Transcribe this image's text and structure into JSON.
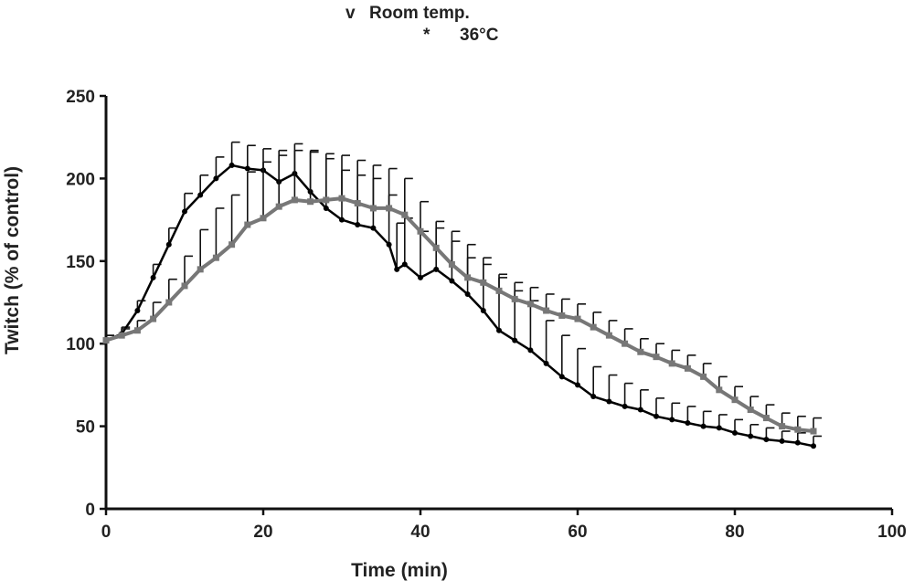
{
  "chart_data": {
    "type": "line",
    "title": "",
    "xlabel": "Time (min)",
    "ylabel": "Twitch (% of control)",
    "xlim": [
      0,
      100
    ],
    "ylim": [
      0,
      250
    ],
    "xticks": [
      "0",
      "20",
      "40",
      "60",
      "80",
      "100"
    ],
    "yticks": [
      "0",
      "50",
      "100",
      "150",
      "200",
      "250"
    ],
    "grid": false,
    "legend_position": "top-center",
    "series": [
      {
        "name": "Room temp.",
        "marker_label": "v",
        "color": "#000000",
        "x": [
          0,
          2,
          4,
          6,
          8,
          10,
          12,
          14,
          16,
          18,
          20,
          22,
          24,
          26,
          28,
          30,
          32,
          34,
          36,
          37,
          38,
          40,
          42,
          44,
          46,
          48,
          50,
          52,
          54,
          56,
          58,
          60,
          62,
          64,
          66,
          68,
          70,
          72,
          74,
          76,
          78,
          80,
          82,
          84,
          86,
          88,
          90
        ],
        "y": [
          102,
          106,
          120,
          140,
          160,
          180,
          190,
          200,
          208,
          206,
          205,
          198,
          203,
          192,
          182,
          175,
          172,
          170,
          160,
          145,
          148,
          140,
          145,
          138,
          130,
          120,
          108,
          102,
          96,
          88,
          80,
          75,
          68,
          65,
          62,
          60,
          56,
          54,
          52,
          50,
          49,
          46,
          44,
          42,
          41,
          40,
          38
        ],
        "err": [
          3,
          4,
          6,
          8,
          10,
          11,
          12,
          13,
          14,
          14,
          13,
          16,
          18,
          25,
          30,
          30,
          30,
          30,
          30,
          28,
          28,
          28,
          25,
          30,
          30,
          32,
          32,
          30,
          30,
          26,
          25,
          22,
          18,
          16,
          14,
          12,
          11,
          10,
          10,
          9,
          8,
          8,
          7,
          7,
          6,
          6,
          6
        ]
      },
      {
        "name": "36°C",
        "marker_label": "*",
        "color": "#777777",
        "x": [
          0,
          2,
          4,
          6,
          8,
          10,
          12,
          14,
          16,
          18,
          20,
          22,
          24,
          26,
          28,
          30,
          32,
          34,
          36,
          38,
          40,
          42,
          44,
          46,
          48,
          50,
          52,
          54,
          56,
          58,
          60,
          62,
          64,
          66,
          68,
          70,
          72,
          74,
          76,
          78,
          80,
          82,
          84,
          86,
          88,
          90
        ],
        "y": [
          102,
          105,
          108,
          115,
          125,
          135,
          145,
          152,
          160,
          172,
          176,
          183,
          187,
          186,
          187,
          188,
          185,
          182,
          182,
          178,
          168,
          158,
          148,
          140,
          137,
          132,
          127,
          124,
          120,
          117,
          115,
          110,
          105,
          100,
          95,
          92,
          88,
          85,
          80,
          72,
          66,
          60,
          55,
          50,
          48,
          47
        ],
        "err": [
          3,
          4,
          6,
          10,
          14,
          18,
          24,
          30,
          30,
          32,
          34,
          34,
          30,
          30,
          28,
          26,
          26,
          26,
          24,
          22,
          18,
          16,
          14,
          12,
          11,
          10,
          10,
          10,
          10,
          10,
          9,
          9,
          9,
          9,
          8,
          8,
          8,
          8,
          8,
          8,
          8,
          8,
          8,
          8,
          8,
          8
        ]
      }
    ]
  }
}
